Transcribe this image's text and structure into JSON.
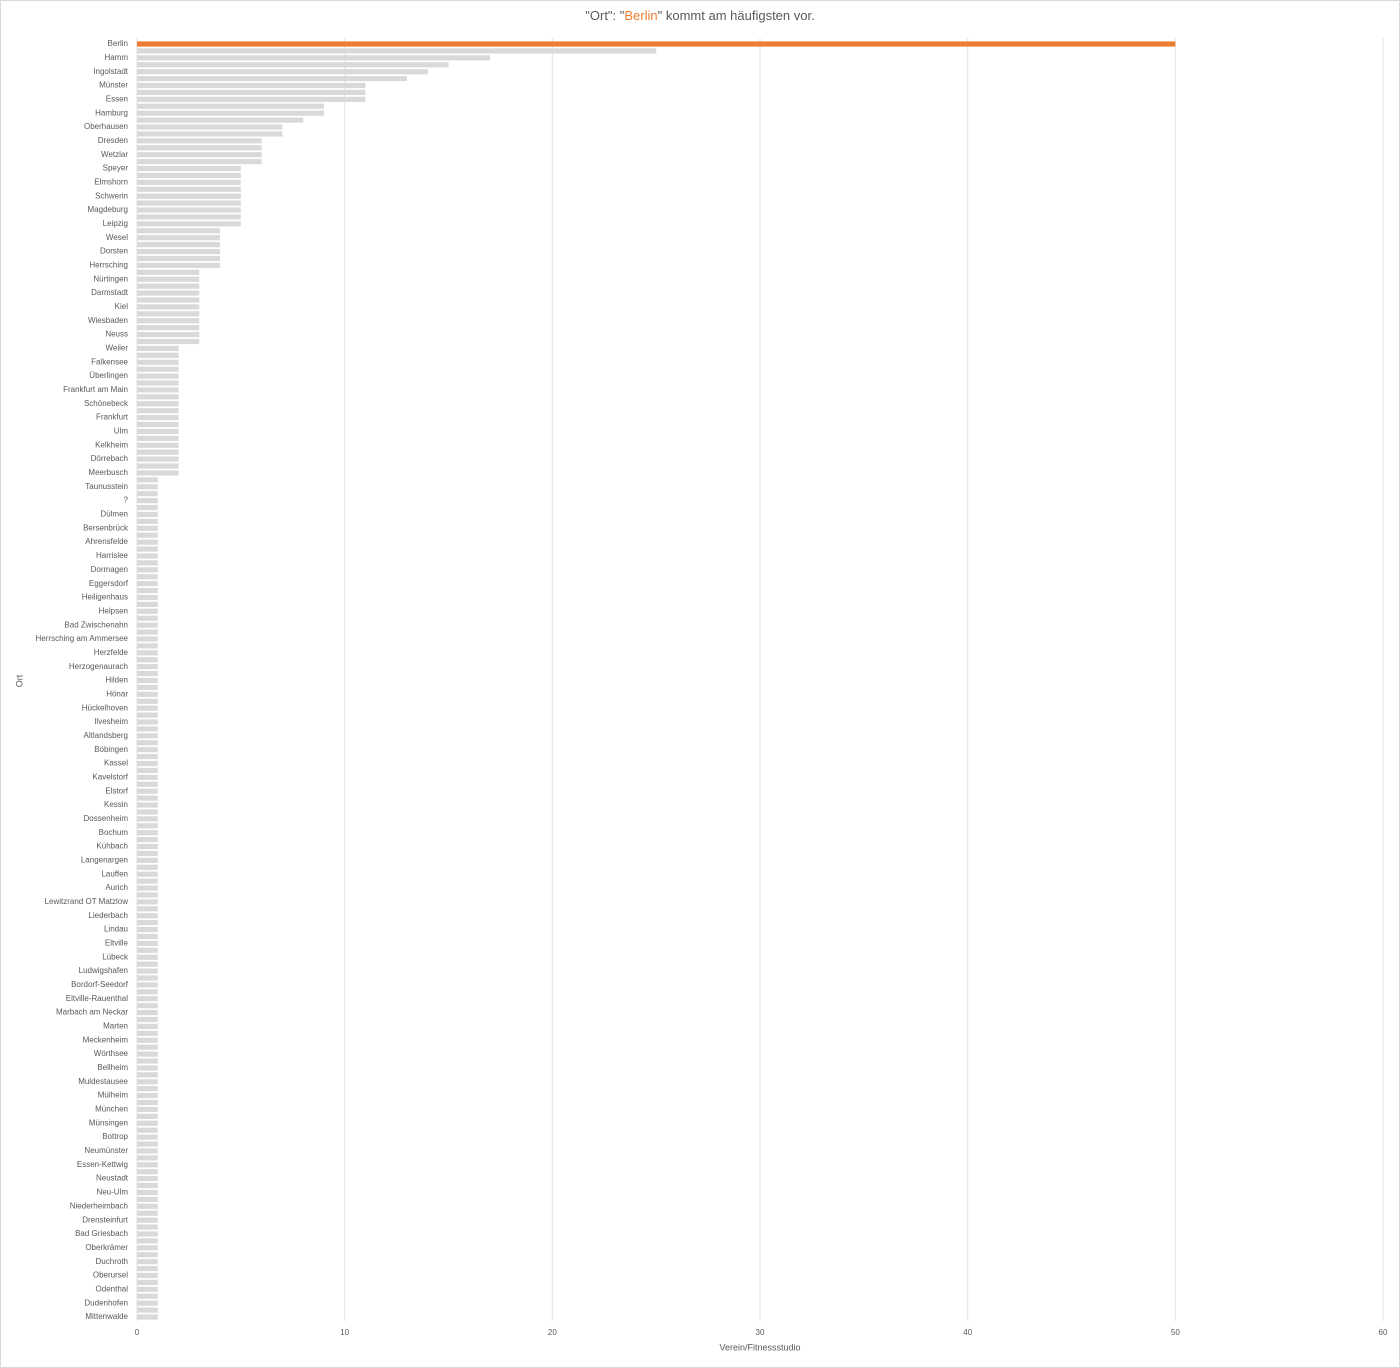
{
  "chart_data": {
    "type": "bar",
    "orientation": "horizontal",
    "title": [
      "\"Ort\": \"",
      "Berlin",
      "\" kommt am häufigsten vor."
    ],
    "highlight": "Berlin",
    "highlight_color": "#ed7d31",
    "color": "#d9d9d9",
    "x_label": "Verein/Fitnessstudio",
    "y_label": "Ort",
    "xlim": [
      0,
      60
    ],
    "xticks": [
      0,
      10,
      20,
      30,
      40,
      50,
      60
    ],
    "grid": true,
    "categories": [
      "Berlin",
      null,
      "Hamm",
      null,
      "Ingolstadt",
      null,
      "Münster",
      null,
      "Essen",
      null,
      "Hamburg",
      null,
      "Oberhausen",
      null,
      "Dresden",
      null,
      "Wetzlar",
      null,
      "Speyer",
      null,
      "Elmshorn",
      null,
      "Schwerin",
      null,
      "Magdeburg",
      null,
      "Leipzig",
      null,
      "Wesel",
      null,
      "Dorsten",
      null,
      "Herrsching",
      null,
      "Nürtingen",
      null,
      "Darmstadt",
      null,
      "Kiel",
      null,
      "Wiesbaden",
      null,
      "Neuss",
      null,
      "Weiler",
      null,
      "Falkensee",
      null,
      "Überlingen",
      null,
      "Frankfurt am Main",
      null,
      "Schönebeck",
      null,
      "Frankfurt",
      null,
      "Ulm",
      null,
      "Kelkheim",
      null,
      "Dörrebach",
      null,
      "Meerbusch",
      null,
      "Taunusstein",
      null,
      "?",
      null,
      "Dülmen",
      null,
      "Bersenbrück",
      null,
      "Ahrensfelde",
      null,
      "Harrislee",
      null,
      "Dormagen",
      null,
      "Eggersdorf",
      null,
      "Heiligenhaus",
      null,
      "Helpsen",
      null,
      "Bad Zwischenahn",
      null,
      "Herrsching am Ammersee",
      null,
      "Herzfelde",
      null,
      "Herzogenaurach",
      null,
      "Hilden",
      null,
      "Hönar",
      null,
      "Hückelhoven",
      null,
      "Ilvesheim",
      null,
      "Altlandsberg",
      null,
      "Böbingen",
      null,
      "Kassel",
      null,
      "Kavelstorf",
      null,
      "Elstorf",
      null,
      "Kessin",
      null,
      "Dossenheim",
      null,
      "Bochum",
      null,
      "Kühbach",
      null,
      "Langenargen",
      null,
      "Lauffen",
      null,
      "Aurich",
      null,
      "Lewitzrand OT Matzlow",
      null,
      "Liederbach",
      null,
      "Lindau",
      null,
      "Eltville",
      null,
      "Lübeck",
      null,
      "Ludwigshafen",
      null,
      "Bordorf-Seedorf",
      null,
      "Eltville-Rauenthal",
      null,
      "Marbach am Neckar",
      null,
      "Marten",
      null,
      "Meckenheim",
      null,
      "Wörthsee",
      null,
      "Bellheim",
      null,
      "Muldestausee",
      null,
      "Mülheim",
      null,
      "München",
      null,
      "Münsingen",
      null,
      "Bottrop",
      null,
      "Neumünster",
      null,
      "Essen-Kettwig",
      null,
      "Neustadt",
      null,
      "Neu-Ulm",
      null,
      "Niederheimbach",
      null,
      "Drensteinfurt",
      null,
      "Bad Griesbach",
      null,
      "Oberkrämer",
      null,
      "Duchroth",
      null,
      "Oberursel",
      null,
      "Odenthal",
      null,
      "Dudenhofen",
      null,
      "Mittenwalde"
    ],
    "values": [
      50,
      25,
      17,
      15,
      14,
      13,
      11,
      11,
      11,
      9,
      9,
      8,
      7,
      7,
      6,
      6,
      6,
      6,
      5,
      5,
      5,
      5,
      5,
      5,
      5,
      5,
      5,
      4,
      4,
      4,
      4,
      4,
      4,
      3,
      3,
      3,
      3,
      3,
      3,
      3,
      3,
      3,
      3,
      3,
      2,
      2,
      2,
      2,
      2,
      2,
      2,
      2,
      2,
      2,
      2,
      2,
      2,
      2,
      2,
      2,
      2,
      2,
      2,
      1,
      1,
      1,
      1,
      1,
      1,
      1,
      1,
      1,
      1,
      1,
      1,
      1,
      1,
      1,
      1,
      1,
      1,
      1,
      1,
      1,
      1,
      1,
      1,
      1,
      1,
      1,
      1,
      1,
      1,
      1,
      1,
      1,
      1,
      1,
      1,
      1,
      1,
      1,
      1,
      1,
      1,
      1,
      1,
      1,
      1,
      1,
      1,
      1,
      1,
      1,
      1,
      1,
      1,
      1,
      1,
      1,
      1,
      1,
      1,
      1,
      1,
      1,
      1,
      1,
      1,
      1,
      1,
      1,
      1,
      1,
      1,
      1,
      1,
      1,
      1,
      1,
      1,
      1,
      1,
      1,
      1,
      1,
      1,
      1,
      1,
      1,
      1,
      1,
      1,
      1,
      1,
      1,
      1,
      1,
      1,
      1,
      1,
      1,
      1,
      1,
      1,
      1,
      1,
      1,
      1,
      1,
      1,
      1,
      1,
      1,
      1,
      1,
      1,
      1,
      1,
      1,
      1,
      1,
      1,
      1,
      1
    ]
  }
}
